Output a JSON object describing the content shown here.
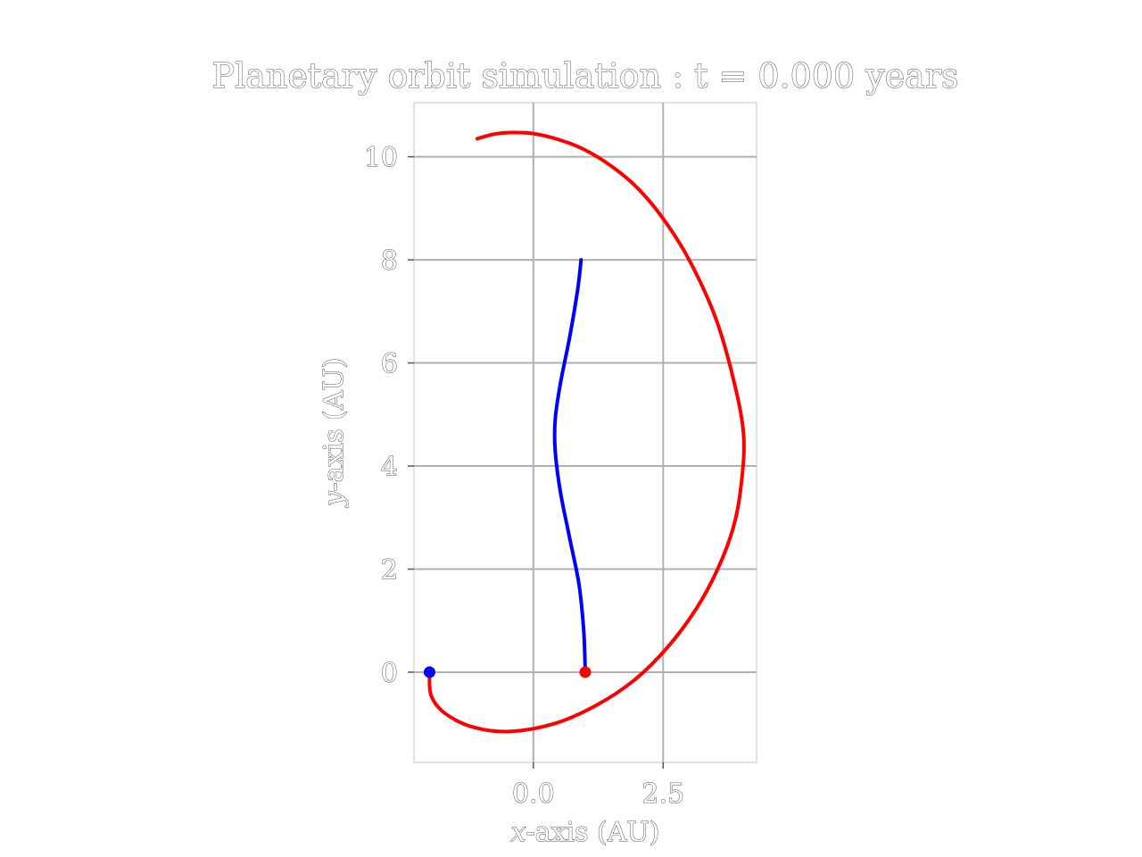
{
  "chart_data": {
    "type": "line",
    "title": "Planetary orbit simulation : t = 0.000 years",
    "xlabel_var": "x",
    "xlabel_rest": "-axis (AU)",
    "ylabel_var": "y",
    "ylabel_rest": "-axis (AU)",
    "xlim": [
      -2.3,
      4.3
    ],
    "ylim": [
      -1.75,
      11.05
    ],
    "xticks": [
      0.0,
      2.5
    ],
    "xtick_labels": [
      "0.0",
      "2.5"
    ],
    "yticks": [
      0,
      2,
      4,
      6,
      8,
      10
    ],
    "ytick_labels": [
      "0",
      "2",
      "4",
      "6",
      "8",
      "10"
    ],
    "grid": true,
    "aspect": "equal",
    "series": [
      {
        "color": "#ff0000",
        "x": [
          -1.08,
          -0.75,
          -0.4,
          0.0,
          0.5,
          1.0,
          1.5,
          2.0,
          2.5,
          3.0,
          3.5,
          3.85,
          4.05,
          4.0,
          3.85,
          3.55,
          3.15,
          2.6,
          1.95,
          1.2,
          0.4,
          -0.45,
          -1.15,
          -1.7,
          -1.97,
          -2.0
        ],
        "y": [
          10.35,
          10.44,
          10.47,
          10.45,
          10.33,
          10.13,
          9.82,
          9.4,
          8.8,
          8.0,
          6.9,
          5.7,
          4.6,
          3.6,
          2.8,
          2.0,
          1.25,
          0.5,
          -0.15,
          -0.65,
          -1.0,
          -1.15,
          -1.07,
          -0.8,
          -0.45,
          0.0
        ]
      },
      {
        "color": "#0000ff",
        "x": [
          0.92,
          0.85,
          0.7,
          0.52,
          0.42,
          0.42,
          0.52,
          0.7,
          0.88,
          0.97,
          1.0
        ],
        "y": [
          8.0,
          7.4,
          6.5,
          5.6,
          4.9,
          4.3,
          3.5,
          2.6,
          1.7,
          0.8,
          0.0
        ]
      }
    ],
    "markers": [
      {
        "x": -2.0,
        "y": 0.0,
        "color": "#0000ff"
      },
      {
        "x": 1.0,
        "y": 0.0,
        "color": "#ff0000"
      }
    ]
  }
}
